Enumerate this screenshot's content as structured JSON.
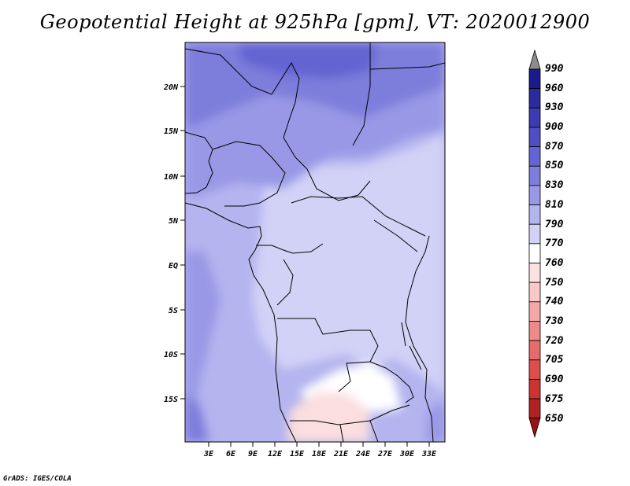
{
  "title": "Geopotential Height at 925hPa [gpm], VT: 2020012900",
  "footer": "GrADS: IGES/COLA",
  "map": {
    "lat_ticks": [
      "20N",
      "15N",
      "10N",
      "5N",
      "EQ",
      "5S",
      "10S",
      "15S"
    ],
    "lon_ticks": [
      "3E",
      "6E",
      "9E",
      "12E",
      "15E",
      "18E",
      "21E",
      "24E",
      "27E",
      "30E",
      "33E"
    ]
  },
  "colorbar": {
    "levels": [
      "990",
      "960",
      "930",
      "900",
      "870",
      "850",
      "830",
      "810",
      "790",
      "770",
      "760",
      "750",
      "740",
      "730",
      "720",
      "705",
      "690",
      "675",
      "650"
    ],
    "colors": [
      "#8c8c8c",
      "#1a1a8c",
      "#2b2ba0",
      "#3c3cb2",
      "#4f4fc4",
      "#6464d2",
      "#7d7ddc",
      "#9898e6",
      "#b4b4ef",
      "#d2d2f7",
      "#ffffff",
      "#fde2e2",
      "#f9c8c8",
      "#f4a9a9",
      "#ef8a8a",
      "#e86b6b",
      "#df4c4c",
      "#cc3333",
      "#b22222",
      "#9a1212"
    ]
  }
}
